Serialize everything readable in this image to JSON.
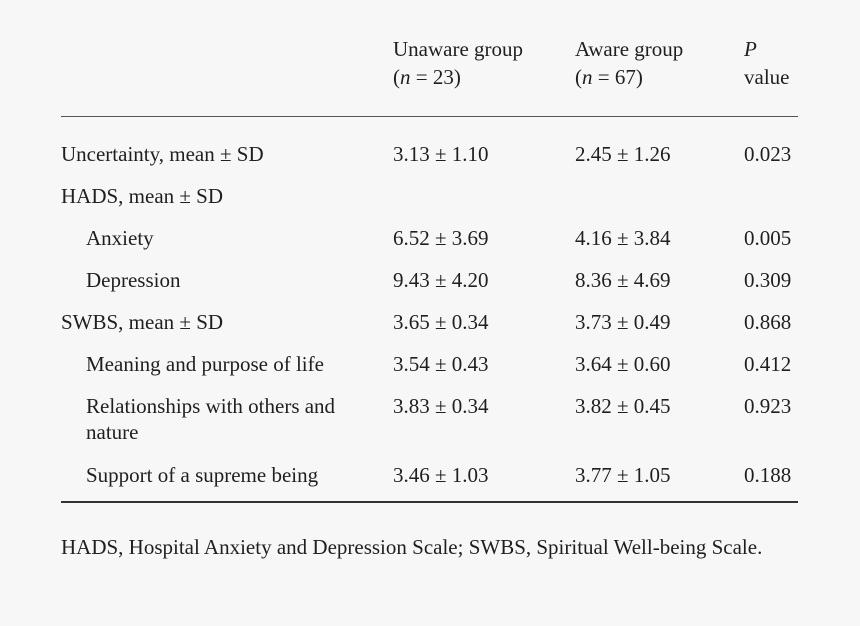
{
  "header": {
    "col1": {
      "line1": "Unaware group",
      "n_symbol": "n",
      "n_value": " = 23"
    },
    "col2": {
      "line1": "Aware group",
      "n_symbol": "n",
      "n_value": " = 67"
    },
    "col3": {
      "line1": "P",
      "line2": "value"
    }
  },
  "rows": [
    {
      "label": "Uncertainty, mean ± SD",
      "unaware": "3.13 ± 1.10",
      "aware": "2.45 ± 1.26",
      "p": "0.023"
    },
    {
      "label": "HADS, mean ± SD",
      "unaware": "",
      "aware": "",
      "p": ""
    },
    {
      "label": "Anxiety",
      "unaware": "6.52 ± 3.69",
      "aware": "4.16 ± 3.84",
      "p": "0.005"
    },
    {
      "label": "Depression",
      "unaware": "9.43 ± 4.20",
      "aware": "8.36 ± 4.69",
      "p": "0.309"
    },
    {
      "label": "SWBS, mean ± SD",
      "unaware": "3.65 ± 0.34",
      "aware": "3.73 ± 0.49",
      "p": "0.868"
    },
    {
      "label": "Meaning and purpose of life",
      "unaware": "3.54 ± 0.43",
      "aware": "3.64 ± 0.60",
      "p": "0.412"
    },
    {
      "label": "Relationships with others and nature",
      "unaware": "3.83 ± 0.34",
      "aware": "3.82 ± 0.45",
      "p": "0.923"
    },
    {
      "label": "Support of a supreme being",
      "unaware": "3.46 ± 1.03",
      "aware": "3.77 ± 1.05",
      "p": "0.188"
    }
  ],
  "footnote": "HADS, Hospital Anxiety and Depression Scale; SWBS, Spiritual Well-being Scale."
}
